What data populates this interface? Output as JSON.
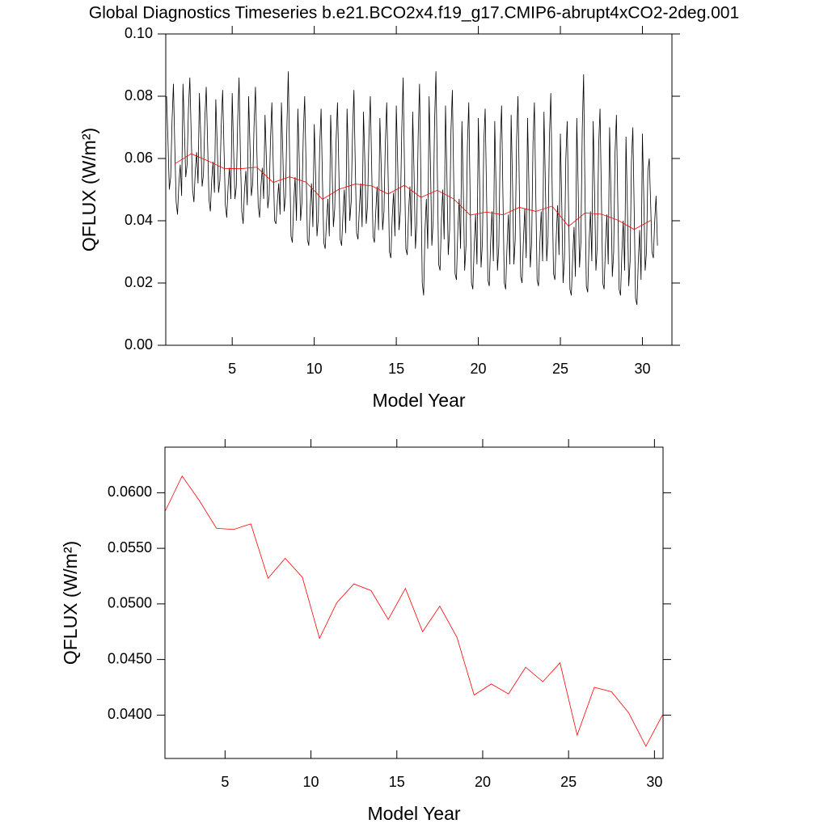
{
  "chart_data": [
    {
      "type": "line",
      "title": "Global Diagnostics Timeseries b.e21.BCO2x4.f19_g17.CMIP6-abrupt4xCO2-2deg.001",
      "xlabel": "Model Year",
      "ylabel": "QFLUX (W/m²)",
      "xlim": [
        0.95,
        31.8
      ],
      "xticks": [
        5,
        10,
        15,
        20,
        25,
        30
      ],
      "ylim": [
        0,
        0.1
      ],
      "yticks": [
        {
          "value": 0,
          "label": "0.00"
        },
        {
          "value": 0.02,
          "label": "0.02"
        },
        {
          "value": 0.04,
          "label": "0.04"
        },
        {
          "value": 0.06,
          "label": "0.06"
        },
        {
          "value": 0.08,
          "label": "0.08"
        },
        {
          "value": 0.1,
          "label": "0.10"
        }
      ],
      "series": [
        {
          "color": "#000000",
          "x": [
            1,
            1.083,
            1.167,
            1.25,
            1.333,
            1.417,
            1.5,
            1.583,
            1.667,
            1.75,
            1.833,
            1.917,
            2,
            2.083,
            2.167,
            2.25,
            2.333,
            2.417,
            2.5,
            2.583,
            2.667,
            2.75,
            2.833,
            2.917,
            3,
            3.083,
            3.167,
            3.25,
            3.333,
            3.417,
            3.5,
            3.583,
            3.667,
            3.75,
            3.833,
            3.917,
            4,
            4.083,
            4.167,
            4.25,
            4.333,
            4.417,
            4.5,
            4.583,
            4.667,
            4.75,
            4.833,
            4.917,
            5,
            5.083,
            5.167,
            5.25,
            5.333,
            5.417,
            5.5,
            5.583,
            5.667,
            5.75,
            5.833,
            5.917,
            6,
            6.083,
            6.167,
            6.25,
            6.333,
            6.417,
            6.5,
            6.583,
            6.667,
            6.75,
            6.833,
            6.917,
            7,
            7.083,
            7.167,
            7.25,
            7.333,
            7.417,
            7.5,
            7.583,
            7.667,
            7.75,
            7.833,
            7.917,
            8,
            8.083,
            8.167,
            8.25,
            8.333,
            8.417,
            8.5,
            8.583,
            8.667,
            8.75,
            8.833,
            8.917,
            9,
            9.083,
            9.167,
            9.25,
            9.333,
            9.417,
            9.5,
            9.583,
            9.667,
            9.75,
            9.833,
            9.917,
            10,
            10.083,
            10.167,
            10.25,
            10.333,
            10.417,
            10.5,
            10.583,
            10.667,
            10.75,
            10.833,
            10.917,
            11,
            11.083,
            11.167,
            11.25,
            11.333,
            11.417,
            11.5,
            11.583,
            11.667,
            11.75,
            11.833,
            11.917,
            12,
            12.083,
            12.167,
            12.25,
            12.333,
            12.417,
            12.5,
            12.583,
            12.667,
            12.75,
            12.833,
            12.917,
            13,
            13.083,
            13.167,
            13.25,
            13.333,
            13.417,
            13.5,
            13.583,
            13.667,
            13.75,
            13.833,
            13.917,
            14,
            14.083,
            14.167,
            14.25,
            14.333,
            14.417,
            14.5,
            14.583,
            14.667,
            14.75,
            14.833,
            14.917,
            15,
            15.083,
            15.167,
            15.25,
            15.333,
            15.417,
            15.5,
            15.583,
            15.667,
            15.75,
            15.833,
            15.917,
            16,
            16.083,
            16.167,
            16.25,
            16.333,
            16.417,
            16.5,
            16.583,
            16.667,
            16.75,
            16.833,
            16.917,
            17,
            17.083,
            17.167,
            17.25,
            17.333,
            17.417,
            17.5,
            17.583,
            17.667,
            17.75,
            17.833,
            17.917,
            18,
            18.083,
            18.167,
            18.25,
            18.333,
            18.417,
            18.5,
            18.583,
            18.667,
            18.75,
            18.833,
            18.917,
            19,
            19.083,
            19.167,
            19.25,
            19.333,
            19.417,
            19.5,
            19.583,
            19.667,
            19.75,
            19.833,
            19.917,
            20,
            20.083,
            20.167,
            20.25,
            20.333,
            20.417,
            20.5,
            20.583,
            20.667,
            20.75,
            20.833,
            20.917,
            21,
            21.083,
            21.167,
            21.25,
            21.333,
            21.417,
            21.5,
            21.583,
            21.667,
            21.75,
            21.833,
            21.917,
            22,
            22.083,
            22.167,
            22.25,
            22.333,
            22.417,
            22.5,
            22.583,
            22.667,
            22.75,
            22.833,
            22.917,
            23,
            23.083,
            23.167,
            23.25,
            23.333,
            23.417,
            23.5,
            23.583,
            23.667,
            23.75,
            23.833,
            23.917,
            24,
            24.083,
            24.167,
            24.25,
            24.333,
            24.417,
            24.5,
            24.583,
            24.667,
            24.75,
            24.833,
            24.917,
            25,
            25.083,
            25.167,
            25.25,
            25.333,
            25.417,
            25.5,
            25.583,
            25.667,
            25.75,
            25.833,
            25.917,
            26,
            26.083,
            26.167,
            26.25,
            26.333,
            26.417,
            26.5,
            26.583,
            26.667,
            26.75,
            26.833,
            26.917,
            27,
            27.083,
            27.167,
            27.25,
            27.333,
            27.417,
            27.5,
            27.583,
            27.667,
            27.75,
            27.833,
            27.917,
            28,
            28.083,
            28.167,
            28.25,
            28.333,
            28.417,
            28.5,
            28.583,
            28.667,
            28.75,
            28.833,
            28.917,
            29,
            29.083,
            29.167,
            29.25,
            29.333,
            29.417,
            29.5,
            29.583,
            29.667,
            29.75,
            29.833,
            29.917,
            30,
            30.083,
            30.167,
            30.25,
            30.333,
            30.417,
            30.5,
            30.583,
            30.667,
            30.75,
            30.833,
            30.917
          ],
          "values": [
            0.08,
            0.066,
            0.05,
            0.054,
            0.072,
            0.084,
            0.064,
            0.046,
            0.042,
            0.052,
            0.058,
            0.048,
            0.084,
            0.07,
            0.054,
            0.058,
            0.076,
            0.086,
            0.068,
            0.05,
            0.046,
            0.056,
            0.062,
            0.052,
            0.081,
            0.067,
            0.051,
            0.055,
            0.073,
            0.083,
            0.065,
            0.047,
            0.043,
            0.053,
            0.059,
            0.049,
            0.079,
            0.065,
            0.049,
            0.053,
            0.071,
            0.082,
            0.063,
            0.045,
            0.041,
            0.051,
            0.057,
            0.047,
            0.081,
            0.063,
            0.047,
            0.051,
            0.072,
            0.086,
            0.061,
            0.043,
            0.039,
            0.05,
            0.056,
            0.045,
            0.08,
            0.064,
            0.048,
            0.052,
            0.071,
            0.083,
            0.063,
            0.045,
            0.041,
            0.051,
            0.057,
            0.047,
            0.074,
            0.06,
            0.044,
            0.048,
            0.066,
            0.078,
            0.058,
            0.04,
            0.039,
            0.046,
            0.052,
            0.042,
            0.078,
            0.062,
            0.043,
            0.048,
            0.07,
            0.088,
            0.06,
            0.035,
            0.033,
            0.046,
            0.054,
            0.04,
            0.076,
            0.06,
            0.04,
            0.046,
            0.068,
            0.08,
            0.058,
            0.034,
            0.032,
            0.044,
            0.052,
            0.038,
            0.071,
            0.055,
            0.035,
            0.041,
            0.064,
            0.076,
            0.053,
            0.033,
            0.031,
            0.04,
            0.047,
            0.035,
            0.074,
            0.058,
            0.038,
            0.044,
            0.066,
            0.078,
            0.056,
            0.034,
            0.032,
            0.042,
            0.05,
            0.036,
            0.076,
            0.06,
            0.04,
            0.046,
            0.068,
            0.082,
            0.058,
            0.036,
            0.034,
            0.044,
            0.052,
            0.038,
            0.075,
            0.059,
            0.039,
            0.045,
            0.067,
            0.08,
            0.057,
            0.035,
            0.033,
            0.043,
            0.051,
            0.037,
            0.073,
            0.057,
            0.037,
            0.043,
            0.065,
            0.078,
            0.055,
            0.03,
            0.028,
            0.041,
            0.049,
            0.035,
            0.077,
            0.059,
            0.037,
            0.043,
            0.069,
            0.086,
            0.057,
            0.031,
            0.029,
            0.043,
            0.051,
            0.035,
            0.075,
            0.055,
            0.031,
            0.039,
            0.067,
            0.084,
            0.053,
            0.02,
            0.016,
            0.037,
            0.047,
            0.031,
            0.08,
            0.058,
            0.032,
            0.04,
            0.072,
            0.088,
            0.056,
            0.026,
            0.024,
            0.04,
            0.05,
            0.034,
            0.077,
            0.055,
            0.029,
            0.037,
            0.069,
            0.082,
            0.053,
            0.023,
            0.021,
            0.037,
            0.047,
            0.031,
            0.072,
            0.05,
            0.024,
            0.032,
            0.064,
            0.078,
            0.048,
            0.02,
            0.018,
            0.032,
            0.042,
            0.026,
            0.073,
            0.051,
            0.025,
            0.033,
            0.065,
            0.076,
            0.049,
            0.021,
            0.019,
            0.033,
            0.043,
            0.027,
            0.072,
            0.05,
            0.024,
            0.032,
            0.064,
            0.077,
            0.048,
            0.02,
            0.018,
            0.032,
            0.042,
            0.026,
            0.074,
            0.052,
            0.026,
            0.034,
            0.066,
            0.08,
            0.05,
            0.022,
            0.02,
            0.034,
            0.044,
            0.028,
            0.073,
            0.051,
            0.025,
            0.033,
            0.065,
            0.078,
            0.049,
            0.021,
            0.019,
            0.033,
            0.043,
            0.027,
            0.075,
            0.053,
            0.027,
            0.035,
            0.067,
            0.081,
            0.051,
            0.023,
            0.021,
            0.035,
            0.045,
            0.029,
            0.068,
            0.046,
            0.02,
            0.028,
            0.06,
            0.072,
            0.044,
            0.018,
            0.016,
            0.028,
            0.038,
            0.022,
            0.073,
            0.051,
            0.025,
            0.033,
            0.069,
            0.087,
            0.049,
            0.019,
            0.017,
            0.033,
            0.043,
            0.027,
            0.072,
            0.05,
            0.024,
            0.032,
            0.064,
            0.076,
            0.048,
            0.02,
            0.018,
            0.032,
            0.042,
            0.026,
            0.07,
            0.048,
            0.022,
            0.03,
            0.062,
            0.074,
            0.046,
            0.018,
            0.016,
            0.03,
            0.04,
            0.024,
            0.067,
            0.045,
            0.019,
            0.027,
            0.059,
            0.07,
            0.043,
            0.015,
            0.013,
            0.027,
            0.037,
            0.021,
            0.068,
            0.048,
            0.024,
            0.03,
            0.056,
            0.06,
            0.046,
            0.03,
            0.028,
            0.04,
            0.048,
            0.032
          ]
        },
        {
          "color": "#ff0000",
          "x": [
            1.5,
            2.5,
            3.5,
            4.5,
            5.5,
            6.5,
            7.5,
            8.5,
            9.5,
            10.5,
            11.5,
            12.5,
            13.5,
            14.5,
            15.5,
            16.5,
            17.5,
            18.5,
            19.5,
            20.5,
            21.5,
            22.5,
            23.5,
            24.5,
            25.5,
            26.5,
            27.5,
            28.5,
            29.5,
            30.5
          ],
          "values": [
            0.0583,
            0.0615,
            0.0593,
            0.0568,
            0.0567,
            0.0572,
            0.0523,
            0.0541,
            0.0524,
            0.0469,
            0.0501,
            0.0518,
            0.0512,
            0.0486,
            0.0514,
            0.0475,
            0.0498,
            0.047,
            0.0418,
            0.0428,
            0.0419,
            0.0443,
            0.043,
            0.0447,
            0.0382,
            0.0425,
            0.0421,
            0.0402,
            0.0372,
            0.0401
          ]
        }
      ]
    },
    {
      "type": "line",
      "xlabel": "Model Year",
      "ylabel": "QFLUX (W/m²)",
      "xlim": [
        1.5,
        30.5
      ],
      "xticks": [
        5,
        10,
        15,
        20,
        25,
        30
      ],
      "ylim": [
        0.0361,
        0.0641
      ],
      "yticks": [
        {
          "value": 0.04,
          "label": "0.0400"
        },
        {
          "value": 0.045,
          "label": "0.0450"
        },
        {
          "value": 0.05,
          "label": "0.0500"
        },
        {
          "value": 0.055,
          "label": "0.0550"
        },
        {
          "value": 0.06,
          "label": "0.0600"
        }
      ],
      "series": [
        {
          "color": "#ff0000",
          "x": [
            1.5,
            2.5,
            3.5,
            4.5,
            5.5,
            6.5,
            7.5,
            8.5,
            9.5,
            10.5,
            11.5,
            12.5,
            13.5,
            14.5,
            15.5,
            16.5,
            17.5,
            18.5,
            19.5,
            20.5,
            21.5,
            22.5,
            23.5,
            24.5,
            25.5,
            26.5,
            27.5,
            28.5,
            29.5,
            30.5
          ],
          "values": [
            0.0583,
            0.0615,
            0.0593,
            0.0568,
            0.0567,
            0.0572,
            0.0523,
            0.0541,
            0.0524,
            0.0469,
            0.0501,
            0.0518,
            0.0512,
            0.0486,
            0.0514,
            0.0475,
            0.0498,
            0.047,
            0.0418,
            0.0428,
            0.0419,
            0.0443,
            0.043,
            0.0447,
            0.0382,
            0.0425,
            0.0421,
            0.0402,
            0.0372,
            0.0401
          ]
        }
      ]
    }
  ]
}
